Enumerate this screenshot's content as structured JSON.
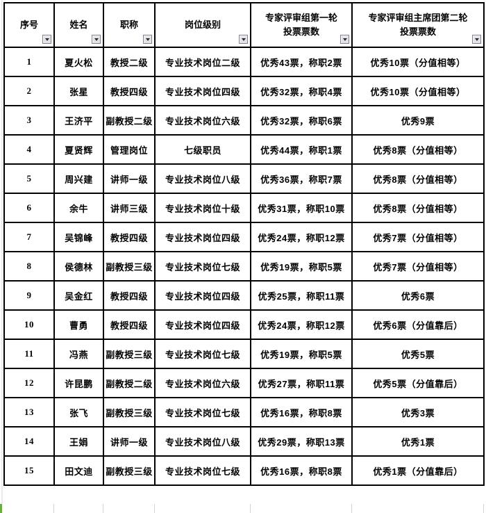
{
  "colors": {
    "table_border": "#000000",
    "filter_button_bg": "#e4e4e7",
    "filter_button_border": "#83838d",
    "gridline": "#d4d4d4",
    "sheet_accent_green": "#6aae43",
    "text": "#000000"
  },
  "table": {
    "columns": [
      {
        "label": "序号",
        "has_filter": true
      },
      {
        "label": "姓名",
        "has_filter": true
      },
      {
        "label": "职称",
        "has_filter": true
      },
      {
        "label": "岗位级别",
        "has_filter": true
      },
      {
        "label": "专家评审组第一轮\n投票票数",
        "has_filter": true
      },
      {
        "label": "专家评审组主席团第二轮\n投票票数",
        "has_filter": true
      }
    ],
    "rows": [
      [
        "1",
        "夏火松",
        "教授二级",
        "专业技术岗位二级",
        "优秀43票，称职2票",
        "优秀10票（分值相等）"
      ],
      [
        "2",
        "张星",
        "教授四级",
        "专业技术岗位四级",
        "优秀32票，称职4票",
        "优秀10票（分值相等）"
      ],
      [
        "3",
        "王济平",
        "副教授二级",
        "专业技术岗位六级",
        "优秀32票，称职6票",
        "优秀9票"
      ],
      [
        "4",
        "夏贤辉",
        "管理岗位",
        "七级职员",
        "优秀44票，称职1票",
        "优秀8票（分值相等）"
      ],
      [
        "5",
        "周兴建",
        "讲师一级",
        "专业技术岗位八级",
        "优秀36票，称职7票",
        "优秀8票（分值相等）"
      ],
      [
        "6",
        "余牛",
        "讲师三级",
        "专业技术岗位十级",
        "优秀31票，称职10票",
        "优秀8票（分值相等）"
      ],
      [
        "7",
        "吴锦峰",
        "教授四级",
        "专业技术岗位四级",
        "优秀24票，称职12票",
        "优秀7票（分值相等）"
      ],
      [
        "8",
        "侯德林",
        "副教授三级",
        "专业技术岗位七级",
        "优秀19票，称职5票",
        "优秀7票（分值相等）"
      ],
      [
        "9",
        "吴金红",
        "教授四级",
        "专业技术岗位四级",
        "优秀25票，称职11票",
        "优秀6票"
      ],
      [
        "10",
        "曹勇",
        "教授四级",
        "专业技术岗位四级",
        "优秀24票，称职12票",
        "优秀6票（分值靠后）"
      ],
      [
        "11",
        "冯燕",
        "副教授三级",
        "专业技术岗位七级",
        "优秀19票，称职5票",
        "优秀5票"
      ],
      [
        "12",
        "许昆鹏",
        "副教授二级",
        "专业技术岗位六级",
        "优秀27票，称职11票",
        "优秀5票（分值靠后）"
      ],
      [
        "13",
        "张飞",
        "副教授三级",
        "专业技术岗位七级",
        "优秀16票，称职8票",
        "优秀3票"
      ],
      [
        "14",
        "王娟",
        "讲师一级",
        "专业技术岗位八级",
        "优秀29票，称职13票",
        "优秀1票"
      ],
      [
        "15",
        "田文迪",
        "副教授三级",
        "专业技术岗位七级",
        "优秀16票，称职8票",
        "优秀1票（分值靠后）"
      ]
    ]
  }
}
